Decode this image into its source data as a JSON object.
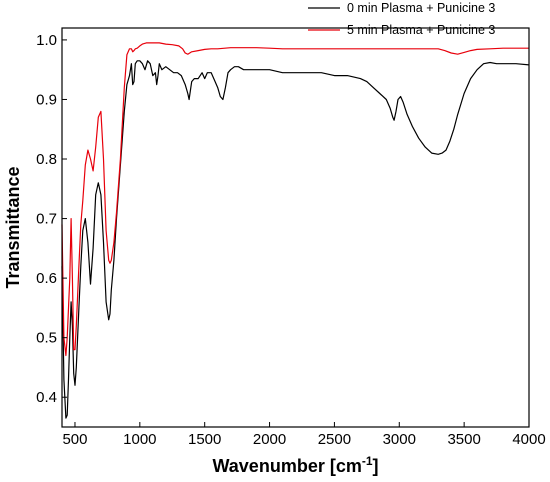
{
  "chart_data": {
    "type": "line",
    "xlabel": "Wavenumber [cm",
    "xlabel_sup": "-1",
    "xlabel_close": "]",
    "ylabel": "Transmittance",
    "xlim": [
      400,
      4000
    ],
    "ylim": [
      0.35,
      1.02
    ],
    "xticks": [
      500,
      1000,
      1500,
      2000,
      2500,
      3000,
      3500,
      4000
    ],
    "xtick_labels": [
      "500",
      "1000",
      "1500",
      "2000",
      "2500",
      "3000",
      "3500",
      "4000"
    ],
    "yticks": [
      0.4,
      0.5,
      0.6,
      0.7,
      0.8,
      0.9,
      1.0
    ],
    "ytick_labels": [
      "0.4",
      "0.5",
      "0.6",
      "0.7",
      "0.8",
      "0.9",
      "1.0"
    ],
    "grid": false,
    "legend_position": "top-right",
    "series": [
      {
        "name": "0 min Plasma + Punicine 3",
        "color": "#000000",
        "x": [
          400,
          415,
          430,
          440,
          450,
          460,
          470,
          480,
          490,
          500,
          510,
          520,
          530,
          545,
          560,
          580,
          600,
          620,
          640,
          660,
          680,
          700,
          720,
          740,
          760,
          770,
          780,
          800,
          820,
          850,
          880,
          900,
          920,
          935,
          945,
          955,
          965,
          980,
          1000,
          1020,
          1040,
          1060,
          1080,
          1100,
          1120,
          1130,
          1140,
          1150,
          1170,
          1200,
          1230,
          1260,
          1290,
          1320,
          1350,
          1370,
          1380,
          1390,
          1400,
          1420,
          1450,
          1480,
          1500,
          1520,
          1550,
          1580,
          1600,
          1620,
          1640,
          1660,
          1680,
          1700,
          1730,
          1760,
          1800,
          1900,
          2000,
          2100,
          2200,
          2300,
          2400,
          2500,
          2600,
          2700,
          2750,
          2800,
          2850,
          2900,
          2930,
          2950,
          2960,
          2975,
          2990,
          3010,
          3030,
          3060,
          3100,
          3150,
          3200,
          3250,
          3300,
          3330,
          3360,
          3390,
          3420,
          3450,
          3500,
          3550,
          3600,
          3650,
          3700,
          3750,
          3800,
          3900,
          4000
        ],
        "y": [
          0.62,
          0.43,
          0.365,
          0.37,
          0.43,
          0.5,
          0.56,
          0.52,
          0.44,
          0.42,
          0.45,
          0.5,
          0.55,
          0.62,
          0.68,
          0.7,
          0.66,
          0.59,
          0.65,
          0.74,
          0.76,
          0.74,
          0.66,
          0.56,
          0.53,
          0.54,
          0.58,
          0.63,
          0.7,
          0.79,
          0.88,
          0.925,
          0.94,
          0.96,
          0.925,
          0.93,
          0.96,
          0.965,
          0.965,
          0.96,
          0.95,
          0.965,
          0.96,
          0.94,
          0.945,
          0.925,
          0.94,
          0.96,
          0.95,
          0.955,
          0.95,
          0.945,
          0.945,
          0.94,
          0.925,
          0.91,
          0.9,
          0.915,
          0.93,
          0.935,
          0.935,
          0.945,
          0.935,
          0.945,
          0.945,
          0.93,
          0.92,
          0.905,
          0.9,
          0.92,
          0.945,
          0.95,
          0.955,
          0.955,
          0.95,
          0.95,
          0.95,
          0.945,
          0.945,
          0.945,
          0.945,
          0.94,
          0.94,
          0.935,
          0.93,
          0.92,
          0.91,
          0.9,
          0.885,
          0.87,
          0.865,
          0.88,
          0.9,
          0.905,
          0.895,
          0.875,
          0.855,
          0.835,
          0.82,
          0.81,
          0.808,
          0.81,
          0.815,
          0.83,
          0.85,
          0.875,
          0.91,
          0.935,
          0.95,
          0.96,
          0.962,
          0.96,
          0.96,
          0.96,
          0.958
        ]
      },
      {
        "name": "5 min Plasma + Punicine 3",
        "color": "#e8000b",
        "x": [
          400,
          415,
          430,
          440,
          450,
          460,
          470,
          480,
          490,
          500,
          510,
          520,
          530,
          545,
          560,
          580,
          600,
          620,
          640,
          660,
          680,
          700,
          720,
          740,
          760,
          770,
          780,
          800,
          820,
          850,
          880,
          900,
          920,
          935,
          945,
          955,
          965,
          980,
          1000,
          1020,
          1050,
          1100,
          1150,
          1200,
          1250,
          1300,
          1330,
          1350,
          1370,
          1400,
          1450,
          1500,
          1550,
          1600,
          1700,
          1800,
          1900,
          2000,
          2100,
          2200,
          2300,
          2400,
          2500,
          2600,
          2700,
          2800,
          2900,
          3000,
          3100,
          3200,
          3300,
          3350,
          3400,
          3450,
          3500,
          3550,
          3600,
          3700,
          3800,
          3900,
          4000
        ],
        "y": [
          0.69,
          0.5,
          0.47,
          0.5,
          0.55,
          0.6,
          0.7,
          0.6,
          0.48,
          0.48,
          0.52,
          0.57,
          0.62,
          0.69,
          0.73,
          0.79,
          0.815,
          0.8,
          0.78,
          0.82,
          0.87,
          0.88,
          0.8,
          0.68,
          0.63,
          0.625,
          0.63,
          0.66,
          0.71,
          0.8,
          0.92,
          0.975,
          0.985,
          0.985,
          0.98,
          0.982,
          0.985,
          0.986,
          0.99,
          0.993,
          0.995,
          0.995,
          0.995,
          0.993,
          0.992,
          0.99,
          0.985,
          0.978,
          0.976,
          0.98,
          0.982,
          0.984,
          0.985,
          0.985,
          0.987,
          0.987,
          0.987,
          0.986,
          0.985,
          0.985,
          0.985,
          0.985,
          0.985,
          0.985,
          0.985,
          0.985,
          0.985,
          0.985,
          0.985,
          0.985,
          0.985,
          0.982,
          0.978,
          0.976,
          0.979,
          0.982,
          0.984,
          0.985,
          0.986,
          0.986,
          0.986
        ]
      }
    ]
  }
}
